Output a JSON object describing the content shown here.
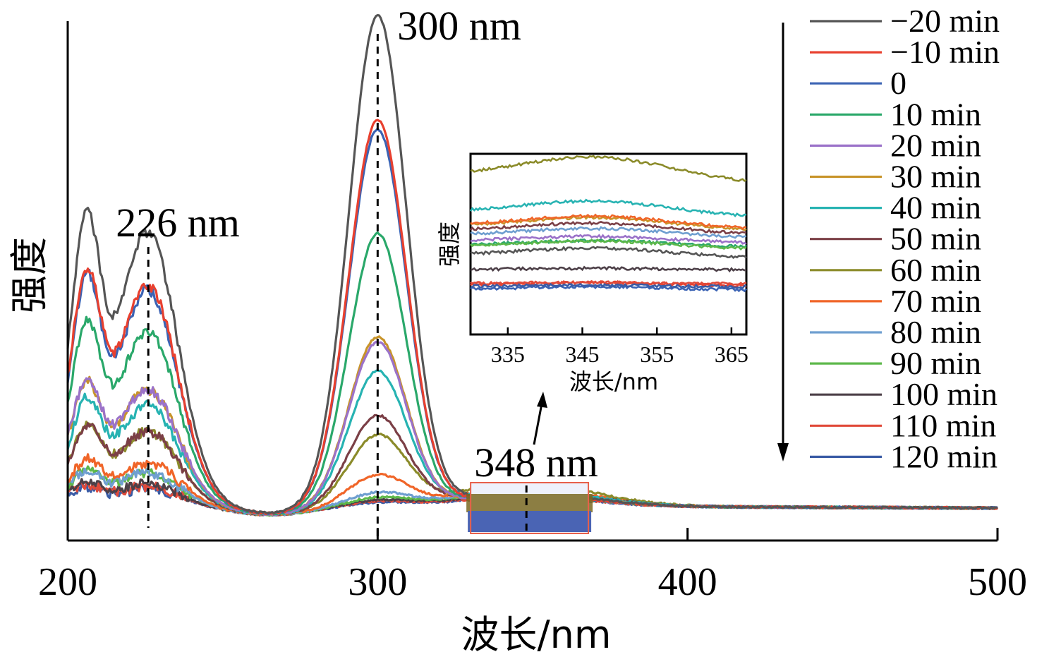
{
  "chart_data": [
    {
      "type": "line",
      "title": "",
      "xlabel": "波长/nm",
      "ylabel": "强度",
      "xlim": [
        200,
        500
      ],
      "ylim": [
        0,
        1
      ],
      "xticks": [
        200,
        300,
        400,
        500
      ],
      "xtick_labels": [
        "200",
        "300",
        "400",
        "500"
      ],
      "grid": false,
      "legend": "right",
      "annotations": [
        {
          "label": "226 nm",
          "x": 226
        },
        {
          "label": "300 nm",
          "x": 300
        },
        {
          "label": "348 nm",
          "x": 348
        }
      ],
      "arrow_direction": "down",
      "highlight_region": {
        "x": [
          330,
          368
        ]
      },
      "series": [
        {
          "name": "−20 min",
          "color": "#555555",
          "peak226": 0.52,
          "peak300": 0.99,
          "peak348": 0.025
        },
        {
          "name": "−10 min",
          "color": "#e8402f",
          "peak226": 0.42,
          "peak300": 0.78,
          "peak348": 0.02
        },
        {
          "name": "0",
          "color": "#3b63b4",
          "peak226": 0.41,
          "peak300": 0.76,
          "peak348": 0.02
        },
        {
          "name": "10 min",
          "color": "#2aa86a",
          "peak226": 0.33,
          "peak300": 0.55,
          "peak348": 0.02
        },
        {
          "name": "20 min",
          "color": "#9b72c9",
          "peak226": 0.22,
          "peak300": 0.33,
          "peak348": 0.02
        },
        {
          "name": "30 min",
          "color": "#c8942a",
          "peak226": 0.22,
          "peak300": 0.34,
          "peak348": 0.02
        },
        {
          "name": "40 min",
          "color": "#27b3b2",
          "peak226": 0.19,
          "peak300": 0.27,
          "peak348": 0.03
        },
        {
          "name": "50 min",
          "color": "#7b3f46",
          "peak226": 0.14,
          "peak300": 0.18,
          "peak348": 0.03
        },
        {
          "name": "60 min",
          "color": "#8b8b2a",
          "peak226": 0.14,
          "peak300": 0.14,
          "peak348": 0.045
        },
        {
          "name": "70 min",
          "color": "#f06528",
          "peak226": 0.08,
          "peak300": 0.06,
          "peak348": 0.035
        },
        {
          "name": "80 min",
          "color": "#6f9fd0",
          "peak226": 0.06,
          "peak300": 0.025,
          "peak348": 0.03
        },
        {
          "name": "90 min",
          "color": "#5db84a",
          "peak226": 0.06,
          "peak300": 0.015,
          "peak348": 0.028
        },
        {
          "name": "100 min",
          "color": "#4d4048",
          "peak226": 0.04,
          "peak300": 0.01,
          "peak348": 0.022
        },
        {
          "name": "110 min",
          "color": "#e14a3a",
          "peak226": 0.035,
          "peak300": 0.008,
          "peak348": 0.018
        },
        {
          "name": "120 min",
          "color": "#3a5ca6",
          "peak226": 0.03,
          "peak300": 0.006,
          "peak348": 0.016
        }
      ]
    },
    {
      "type": "line",
      "title": "",
      "xlabel": "波长/nm",
      "ylabel": "强度",
      "xlim": [
        330,
        367
      ],
      "xticks": [
        335,
        345,
        355,
        365
      ],
      "xtick_labels": [
        "335",
        "345",
        "355",
        "365"
      ],
      "note": "zoomed inset of the 330–367 nm region around 348 nm"
    }
  ]
}
